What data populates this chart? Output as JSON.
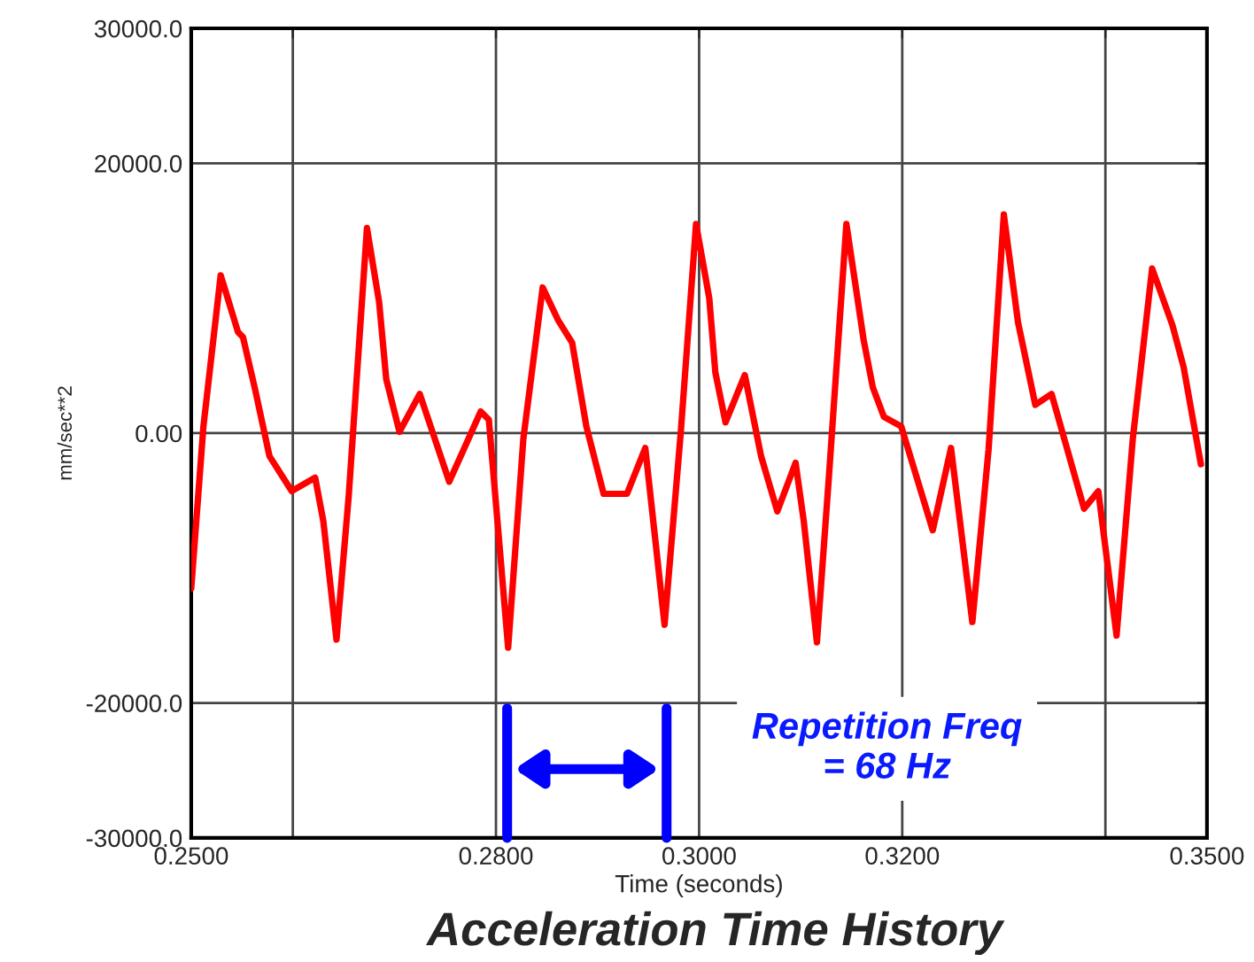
{
  "chart_data": {
    "type": "line",
    "title": "Acceleration Time History",
    "xlabel": "Time (seconds)",
    "ylabel": "mm/sec**2",
    "annotations": [
      "Repetition Freq\n= 68 Hz"
    ],
    "x": [
      0.25,
      0.2512,
      0.2529,
      0.2546,
      0.2551,
      0.2563,
      0.2577,
      0.2599,
      0.2622,
      0.263,
      0.2643,
      0.2655,
      0.2673,
      0.2685,
      0.2692,
      0.2705,
      0.2725,
      0.2754,
      0.2785,
      0.2793,
      0.2812,
      0.2827,
      0.2846,
      0.2861,
      0.2875,
      0.2889,
      0.2906,
      0.2929,
      0.2947,
      0.2966,
      0.2982,
      0.2997,
      0.301,
      0.3016,
      0.3026,
      0.3045,
      0.3061,
      0.3077,
      0.3095,
      0.3103,
      0.3116,
      0.3128,
      0.3145,
      0.3162,
      0.3171,
      0.3182,
      0.3199,
      0.323,
      0.3248,
      0.3269,
      0.3285,
      0.33,
      0.3314,
      0.3331,
      0.3347,
      0.3379,
      0.3393,
      0.3411,
      0.3427,
      0.3446,
      0.3466,
      0.3477,
      0.3494
    ],
    "series": [
      {
        "color": "#ff0000",
        "values": [
          -11500,
          500,
          11700,
          7500,
          7100,
          3200,
          -1700,
          -4300,
          -3300,
          -6500,
          -15300,
          -4700,
          15200,
          9700,
          4000,
          100,
          2900,
          -3600,
          1600,
          1000,
          -15900,
          -400,
          10800,
          8400,
          6700,
          500,
          -4500,
          -4500,
          -1100,
          -14200,
          100,
          15500,
          10000,
          4500,
          800,
          4300,
          -1700,
          -5800,
          -2200,
          -6500,
          -15500,
          -3000,
          15500,
          6900,
          3400,
          1200,
          500,
          -7200,
          -1100,
          -14000,
          -1200,
          16200,
          8200,
          2100,
          2900,
          -5600,
          -4300,
          -15000,
          -400,
          12200,
          8000,
          4900,
          -2300
        ]
      }
    ],
    "xlim": [
      0.25,
      0.35
    ],
    "ylim": [
      -30000,
      30000
    ],
    "xticks": [
      {
        "value": 0.25,
        "label": "0.2500"
      },
      {
        "value": 0.26,
        "label": null
      },
      {
        "value": 0.28,
        "label": "0.2800"
      },
      {
        "value": 0.3,
        "label": "0.3000"
      },
      {
        "value": 0.32,
        "label": "0.3200"
      },
      {
        "value": 0.34,
        "label": null
      },
      {
        "value": 0.35,
        "label": "0.3500"
      }
    ],
    "yticks": [
      {
        "value": -30000,
        "label": "-30000.0"
      },
      {
        "value": -20000,
        "label": "-20000.0"
      },
      {
        "value": 0,
        "label": "0.00"
      },
      {
        "value": 20000,
        "label": "20000.0"
      },
      {
        "value": 30000,
        "label": "30000.0"
      }
    ],
    "ref_lines": [
      {
        "axis": "x",
        "value": 0.2811,
        "color": "#0000ff"
      },
      {
        "axis": "x",
        "value": 0.2968,
        "color": "#0000ff"
      }
    ],
    "grid": true,
    "legend": false,
    "marker": "none",
    "line_style": "solid"
  }
}
